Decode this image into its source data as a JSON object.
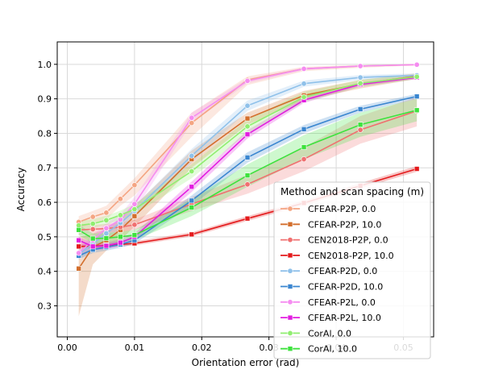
{
  "chart_data": {
    "type": "line",
    "title": "",
    "xlabel": "Orientation error (rad)",
    "ylabel": "Accuracy",
    "xlim": [
      -0.0015,
      0.0545
    ],
    "ylim": [
      0.21,
      1.065
    ],
    "xticks": [
      0.0,
      0.01,
      0.02,
      0.03,
      0.04,
      0.05
    ],
    "xtick_labels": [
      "0.00",
      "0.01",
      "0.02",
      "0.03",
      "0.04",
      "0.05"
    ],
    "yticks": [
      0.3,
      0.4,
      0.5,
      0.6,
      0.7,
      0.8,
      0.9,
      1.0
    ],
    "ytick_labels": [
      "0.3",
      "0.4",
      "0.5",
      "0.6",
      "0.7",
      "0.8",
      "0.9",
      "1.0"
    ],
    "grid": true,
    "legend": {
      "title": "Method and scan spacing (m)",
      "placement": "lower-right"
    },
    "x": [
      0.0017,
      0.0038,
      0.0058,
      0.0079,
      0.01,
      0.0185,
      0.0268,
      0.0352,
      0.0436,
      0.052
    ],
    "series": [
      {
        "name": "CFEAR-P2P, 0.0",
        "color": "#f4a582",
        "marker": "circle",
        "values": [
          0.543,
          0.558,
          0.57,
          0.61,
          0.65,
          0.83,
          0.955,
          0.987,
          0.995,
          0.999
        ],
        "lower": [
          0.525,
          0.54,
          0.55,
          0.59,
          0.62,
          0.79,
          0.94,
          0.98,
          0.99,
          0.997
        ],
        "upper": [
          0.56,
          0.575,
          0.59,
          0.63,
          0.67,
          0.86,
          0.965,
          0.993,
          0.998,
          1.0
        ]
      },
      {
        "name": "CFEAR-P2P, 10.0",
        "color": "#d36e2c",
        "marker": "square",
        "values": [
          0.408,
          0.47,
          0.49,
          0.52,
          0.56,
          0.725,
          0.843,
          0.91,
          0.943,
          0.966
        ],
        "lower": [
          0.27,
          0.42,
          0.46,
          0.49,
          0.53,
          0.7,
          0.825,
          0.895,
          0.93,
          0.958
        ],
        "upper": [
          0.5,
          0.51,
          0.52,
          0.55,
          0.59,
          0.75,
          0.86,
          0.923,
          0.955,
          0.974
        ]
      },
      {
        "name": "CEN2018-P2P, 0.0",
        "color": "#f07070",
        "marker": "circle",
        "values": [
          0.52,
          0.522,
          0.524,
          0.528,
          0.535,
          0.595,
          0.652,
          0.725,
          0.81,
          0.865
        ],
        "lower": [
          0.505,
          0.51,
          0.512,
          0.515,
          0.52,
          0.575,
          0.625,
          0.69,
          0.77,
          0.82
        ],
        "upper": [
          0.535,
          0.535,
          0.537,
          0.541,
          0.55,
          0.615,
          0.68,
          0.76,
          0.85,
          0.905
        ]
      },
      {
        "name": "CEN2018-P2P, 10.0",
        "color": "#e41a1c",
        "marker": "square",
        "values": [
          0.472,
          0.473,
          0.475,
          0.478,
          0.481,
          0.507,
          0.553,
          0.598,
          0.648,
          0.697
        ],
        "lower": [
          0.466,
          0.467,
          0.469,
          0.472,
          0.475,
          0.501,
          0.546,
          0.591,
          0.64,
          0.689
        ],
        "upper": [
          0.478,
          0.479,
          0.481,
          0.484,
          0.487,
          0.513,
          0.56,
          0.605,
          0.656,
          0.705
        ]
      },
      {
        "name": "CFEAR-P2D, 0.0",
        "color": "#8fc1ea",
        "marker": "circle",
        "values": [
          0.45,
          0.48,
          0.51,
          0.54,
          0.575,
          0.735,
          0.88,
          0.944,
          0.962,
          0.968
        ],
        "lower": [
          0.435,
          0.465,
          0.495,
          0.525,
          0.56,
          0.715,
          0.865,
          0.935,
          0.955,
          0.962
        ],
        "upper": [
          0.465,
          0.495,
          0.525,
          0.555,
          0.59,
          0.755,
          0.895,
          0.953,
          0.969,
          0.974
        ]
      },
      {
        "name": "CFEAR-P2D, 10.0",
        "color": "#3a86d0",
        "marker": "square",
        "values": [
          0.445,
          0.463,
          0.47,
          0.478,
          0.49,
          0.605,
          0.73,
          0.812,
          0.87,
          0.907
        ],
        "lower": [
          0.435,
          0.453,
          0.46,
          0.468,
          0.48,
          0.59,
          0.715,
          0.8,
          0.86,
          0.9
        ],
        "upper": [
          0.455,
          0.473,
          0.48,
          0.488,
          0.5,
          0.62,
          0.745,
          0.824,
          0.88,
          0.914
        ]
      },
      {
        "name": "CFEAR-P2L, 0.0",
        "color": "#f58cf0",
        "marker": "circle",
        "values": [
          0.453,
          0.49,
          0.525,
          0.55,
          0.595,
          0.845,
          0.952,
          0.987,
          0.995,
          0.999
        ],
        "lower": [
          0.44,
          0.475,
          0.51,
          0.535,
          0.575,
          0.83,
          0.945,
          0.983,
          0.993,
          0.998
        ],
        "upper": [
          0.466,
          0.505,
          0.54,
          0.565,
          0.615,
          0.86,
          0.959,
          0.991,
          0.997,
          1.0
        ]
      },
      {
        "name": "CFEAR-P2L, 10.0",
        "color": "#e21ce0",
        "marker": "square",
        "values": [
          0.49,
          0.472,
          0.474,
          0.483,
          0.5,
          0.645,
          0.797,
          0.896,
          0.942,
          0.962
        ],
        "lower": [
          0.48,
          0.462,
          0.464,
          0.473,
          0.49,
          0.63,
          0.785,
          0.888,
          0.936,
          0.957
        ],
        "upper": [
          0.5,
          0.482,
          0.484,
          0.493,
          0.51,
          0.66,
          0.809,
          0.904,
          0.948,
          0.967
        ]
      },
      {
        "name": "CorAl, 0.0",
        "color": "#90ee70",
        "marker": "circle",
        "values": [
          0.533,
          0.538,
          0.548,
          0.563,
          0.58,
          0.69,
          0.82,
          0.905,
          0.945,
          0.964
        ],
        "lower": [
          0.52,
          0.525,
          0.535,
          0.55,
          0.565,
          0.67,
          0.8,
          0.89,
          0.935,
          0.957
        ],
        "upper": [
          0.546,
          0.551,
          0.561,
          0.576,
          0.595,
          0.71,
          0.84,
          0.92,
          0.955,
          0.971
        ]
      },
      {
        "name": "CorAl, 10.0",
        "color": "#3de23d",
        "marker": "square",
        "values": [
          0.52,
          0.495,
          0.496,
          0.5,
          0.505,
          0.585,
          0.678,
          0.76,
          0.825,
          0.867
        ],
        "lower": [
          0.505,
          0.48,
          0.481,
          0.485,
          0.49,
          0.56,
          0.645,
          0.725,
          0.79,
          0.835
        ],
        "upper": [
          0.535,
          0.51,
          0.511,
          0.515,
          0.52,
          0.61,
          0.71,
          0.795,
          0.86,
          0.9
        ]
      }
    ]
  }
}
